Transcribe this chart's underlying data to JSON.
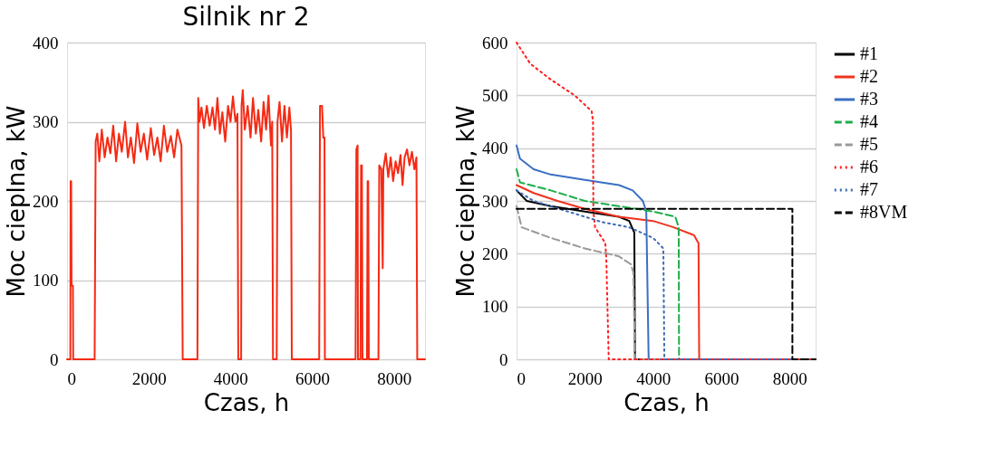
{
  "chart_data": [
    {
      "type": "line",
      "title": "Silnik nr 2",
      "xlabel": "Czas, h",
      "ylabel": "Moc cieplna, kW",
      "xlim": [
        0,
        8760
      ],
      "xticks": [
        0,
        2000,
        4000,
        6000,
        8000
      ],
      "ylim": [
        0,
        400
      ],
      "yticks": [
        0,
        100,
        200,
        300,
        400
      ],
      "grid": "y",
      "legend": false,
      "series": [
        {
          "color": "#f52a14",
          "line_style": "solid",
          "x": [
            0,
            80,
            87,
            100,
            110,
            143,
            150,
            183,
            675,
            700,
            740,
            790,
            850,
            920,
            990,
            1060,
            1130,
            1200,
            1270,
            1340,
            1420,
            1490,
            1560,
            1640,
            1720,
            1800,
            1880,
            1960,
            2050,
            2130,
            2210,
            2290,
            2370,
            2450,
            2540,
            2620,
            2700,
            2800,
            2830,
            3190,
            3210,
            3240,
            3290,
            3350,
            3420,
            3490,
            3560,
            3620,
            3680,
            3740,
            3800,
            3870,
            3940,
            4000,
            4060,
            4120,
            4170,
            4190,
            4260,
            4270,
            4300,
            4350,
            4420,
            4490,
            4550,
            4620,
            4680,
            4750,
            4810,
            4870,
            4930,
            4990,
            5020,
            5040,
            5130,
            5150,
            5200,
            5260,
            5320,
            5380,
            5440,
            5480,
            5500,
            6170,
            6190,
            6240,
            6270,
            6300,
            6310,
            7060,
            7080,
            7110,
            7120,
            7180,
            7195,
            7215,
            7230,
            7340,
            7355,
            7370,
            7385,
            7620,
            7640,
            7690,
            7725,
            7740,
            7800,
            7860,
            7920,
            7980,
            8040,
            8100,
            8160,
            8210,
            8260,
            8320,
            8380,
            8440,
            8500,
            8550,
            8570,
            8760
          ],
          "values": [
            0,
            0,
            225,
            225,
            93,
            93,
            0,
            0,
            0,
            275,
            285,
            250,
            290,
            255,
            280,
            260,
            295,
            250,
            285,
            262,
            300,
            255,
            280,
            248,
            298,
            262,
            285,
            252,
            292,
            258,
            280,
            250,
            295,
            262,
            282,
            255,
            290,
            270,
            0,
            0,
            330,
            300,
            318,
            292,
            320,
            295,
            318,
            290,
            330,
            285,
            312,
            275,
            320,
            300,
            332,
            300,
            310,
            0,
            0,
            320,
            340,
            290,
            320,
            280,
            330,
            285,
            315,
            275,
            325,
            290,
            333,
            270,
            300,
            0,
            0,
            300,
            325,
            275,
            320,
            280,
            318,
            290,
            0,
            0,
            320,
            320,
            280,
            280,
            0,
            0,
            265,
            270,
            0,
            0,
            245,
            245,
            0,
            0,
            225,
            225,
            0,
            0,
            245,
            240,
            115,
            240,
            260,
            230,
            255,
            225,
            250,
            235,
            258,
            220,
            255,
            265,
            245,
            262,
            240,
            255,
            0,
            0
          ]
        }
      ]
    },
    {
      "type": "line",
      "xlabel": "Czas, h",
      "ylabel": "Moc cieplna, kW",
      "xlim": [
        0,
        8760
      ],
      "xticks": [
        0,
        2000,
        4000,
        6000,
        8000
      ],
      "ylim": [
        0,
        600
      ],
      "yticks": [
        0,
        100,
        200,
        300,
        400,
        500,
        600
      ],
      "grid": "y",
      "legend": "top right",
      "series": [
        {
          "name": "#1",
          "color": "#000000",
          "line_style": "solid",
          "x": [
            0,
            300,
            1000,
            2000,
            3000,
            3300,
            3450,
            3470,
            8760
          ],
          "values": [
            320,
            300,
            290,
            280,
            270,
            262,
            240,
            0,
            0
          ]
        },
        {
          "name": "#2",
          "color": "#f0321e",
          "line_style": "solid",
          "x": [
            0,
            500,
            1200,
            2000,
            3000,
            4000,
            4600,
            5200,
            5330,
            5350,
            8760
          ],
          "values": [
            330,
            315,
            300,
            285,
            270,
            262,
            250,
            235,
            220,
            0,
            0
          ]
        },
        {
          "name": "#3",
          "color": "#3a6fc4",
          "line_style": "solid",
          "x": [
            0,
            100,
            500,
            1000,
            2000,
            3000,
            3400,
            3700,
            3800,
            3870,
            8760
          ],
          "values": [
            405,
            380,
            360,
            350,
            340,
            330,
            320,
            300,
            280,
            0,
            0
          ]
        },
        {
          "name": "#4",
          "color": "#1fae4a",
          "line_style": "dashed",
          "x": [
            0,
            100,
            1000,
            2000,
            3000,
            4000,
            4650,
            4750,
            4760,
            8760
          ],
          "values": [
            360,
            335,
            320,
            300,
            290,
            280,
            270,
            250,
            0,
            0
          ]
        },
        {
          "name": "#5",
          "color": "#999999",
          "line_style": "dashed",
          "x": [
            0,
            150,
            1000,
            2000,
            3000,
            3350,
            3420,
            3470,
            8760
          ],
          "values": [
            290,
            250,
            230,
            210,
            195,
            180,
            165,
            0,
            0
          ]
        },
        {
          "name": "#6",
          "color": "#ff2020",
          "line_style": "dotted",
          "x": [
            0,
            400,
            1000,
            1700,
            2200,
            2240,
            2250,
            2300,
            2600,
            2630,
            2700,
            8760
          ],
          "values": [
            600,
            560,
            530,
            500,
            470,
            450,
            280,
            250,
            220,
            190,
            0,
            0
          ]
        },
        {
          "name": "#7",
          "color": "#3d6bb3",
          "line_style": "dotted",
          "x": [
            0,
            500,
            1500,
            2500,
            3300,
            4000,
            4300,
            4330,
            8760
          ],
          "values": [
            320,
            300,
            280,
            260,
            250,
            230,
            210,
            0,
            0
          ]
        },
        {
          "name": "#8VM",
          "color": "#000000",
          "line_style": "dashed",
          "x": [
            0,
            8080,
            8080,
            8760
          ],
          "values": [
            285,
            285,
            0,
            0
          ]
        }
      ]
    }
  ]
}
